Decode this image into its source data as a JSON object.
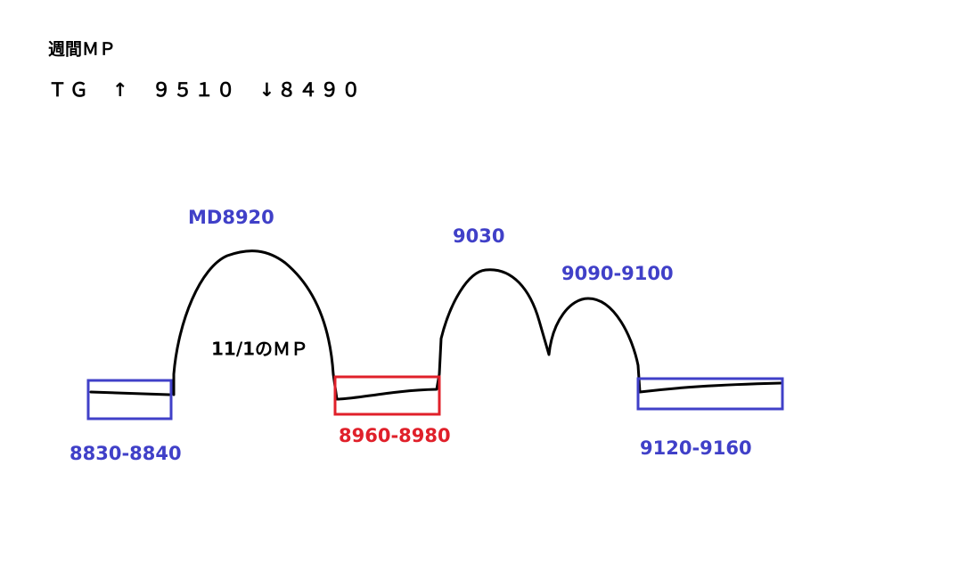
{
  "header": {
    "title": "週間ＭＰ",
    "subtitle": "ＴＧ　↑　９５１０　↓８４９０"
  },
  "labels": {
    "md": "MD8920",
    "peak2": "9030",
    "peak3": "9090-9100",
    "daily": "11/1のＭＰ",
    "left_box": "8830-8840",
    "middle_box": "8960-8980",
    "right_box": "9120-9160"
  }
}
